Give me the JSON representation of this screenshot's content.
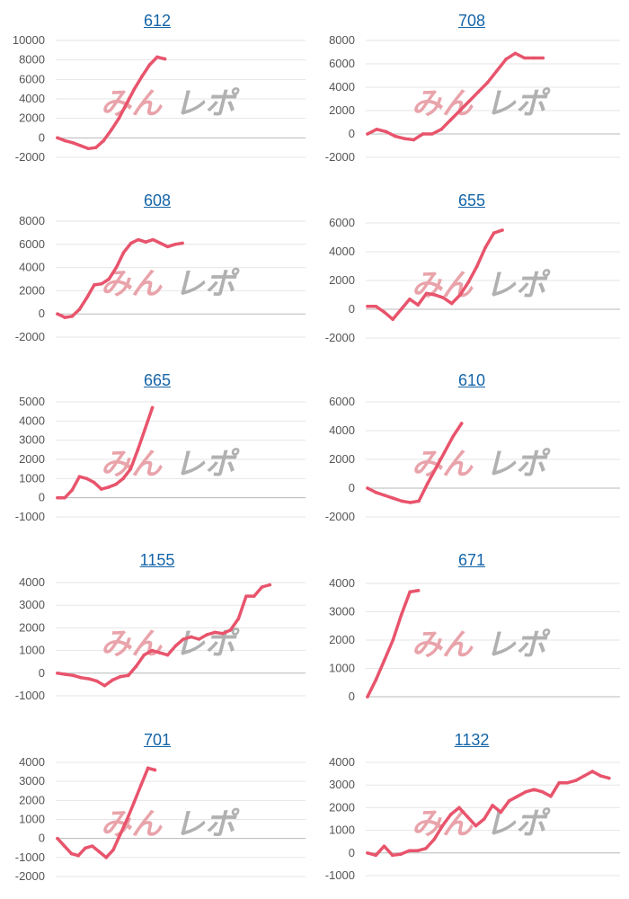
{
  "watermark": {
    "text_left": "みん",
    "text_right": "レポ",
    "color_left": "#e79aa1",
    "color_right": "#a9a9a9"
  },
  "colors": {
    "line": "#e8546c",
    "grid": "#e6e6e6",
    "baseline": "#b8b8b8",
    "title": "#1565a8"
  },
  "chart_data": [
    {
      "type": "line",
      "title": "612",
      "yticks": [
        "10000",
        "8000",
        "6000",
        "4000",
        "2000",
        "0",
        "-2000"
      ],
      "ylim": [
        -2000,
        10000
      ],
      "y": [
        0,
        -300,
        -500,
        -800,
        -1100,
        -1000,
        -300,
        800,
        2000,
        3500,
        5000,
        6300,
        7500,
        8300,
        8100
      ]
    },
    {
      "type": "line",
      "title": "708",
      "yticks": [
        "8000",
        "6000",
        "4000",
        "2000",
        "0",
        "-2000"
      ],
      "ylim": [
        -2000,
        8000
      ],
      "y": [
        0,
        400,
        200,
        -200,
        -400,
        -500,
        0,
        0,
        400,
        1200,
        2000,
        2800,
        3600,
        4400,
        5400,
        6400,
        6900,
        6500,
        6500,
        6500
      ]
    },
    {
      "type": "line",
      "title": "608",
      "yticks": [
        "8000",
        "6000",
        "4000",
        "2000",
        "0",
        "-2000"
      ],
      "ylim": [
        -2000,
        8000
      ],
      "y": [
        0,
        -300,
        -200,
        400,
        1400,
        2500,
        2600,
        3000,
        4000,
        5300,
        6100,
        6400,
        6200,
        6400,
        6100,
        5800,
        6000,
        6100
      ]
    },
    {
      "type": "line",
      "title": "655",
      "yticks": [
        "6000",
        "4000",
        "2000",
        "0",
        "-2000"
      ],
      "ylim": [
        -2000,
        6000
      ],
      "y": [
        200,
        200,
        -200,
        -700,
        0,
        700,
        300,
        1100,
        1000,
        800,
        400,
        1000,
        1900,
        3000,
        4300,
        5300,
        5500
      ]
    },
    {
      "type": "line",
      "title": "665",
      "yticks": [
        "5000",
        "4000",
        "3000",
        "2000",
        "1000",
        "0",
        "-1000"
      ],
      "ylim": [
        -1000,
        5000
      ],
      "y": [
        0,
        0,
        400,
        1100,
        1000,
        800,
        450,
        550,
        700,
        1000,
        1500,
        2500,
        3600,
        4700
      ]
    },
    {
      "type": "line",
      "title": "610",
      "yticks": [
        "6000",
        "4000",
        "2000",
        "0",
        "-2000"
      ],
      "ylim": [
        -2000,
        6000
      ],
      "y": [
        0,
        -300,
        -500,
        -700,
        -900,
        -1000,
        -900,
        300,
        1400,
        2500,
        3600,
        4500
      ]
    },
    {
      "type": "line",
      "title": "1155",
      "yticks": [
        "4000",
        "3000",
        "2000",
        "1000",
        "0",
        "-1000"
      ],
      "ylim": [
        -1000,
        4000
      ],
      "y": [
        0,
        -50,
        -100,
        -200,
        -250,
        -350,
        -550,
        -300,
        -150,
        -100,
        300,
        800,
        1000,
        900,
        800,
        1200,
        1500,
        1600,
        1500,
        1700,
        1800,
        1750,
        1900,
        2400,
        3400,
        3400,
        3800,
        3900
      ]
    },
    {
      "type": "line",
      "title": "671",
      "yticks": [
        "4000",
        "3000",
        "2000",
        "1000",
        "0"
      ],
      "ylim": [
        0,
        4000
      ],
      "y": [
        0,
        600,
        1300,
        2000,
        2900,
        3700,
        3750
      ]
    },
    {
      "type": "line",
      "title": "701",
      "yticks": [
        "4000",
        "3000",
        "2000",
        "1000",
        "0",
        "-1000",
        "-2000"
      ],
      "ylim": [
        -2000,
        4000
      ],
      "y": [
        0,
        -400,
        -800,
        -900,
        -500,
        -400,
        -700,
        -1000,
        -600,
        200,
        1000,
        1900,
        2800,
        3700,
        3600
      ]
    },
    {
      "type": "line",
      "title": "1132",
      "yticks": [
        "4000",
        "3000",
        "2000",
        "1000",
        "0",
        "-1000"
      ],
      "ylim": [
        -1000,
        4000
      ],
      "y": [
        0,
        -100,
        300,
        -100,
        -50,
        100,
        100,
        200,
        600,
        1200,
        1700,
        2000,
        1600,
        1200,
        1500,
        2100,
        1800,
        2300,
        2500,
        2700,
        2800,
        2700,
        2500,
        3100,
        3100,
        3200,
        3400,
        3600,
        3400,
        3300
      ]
    }
  ]
}
